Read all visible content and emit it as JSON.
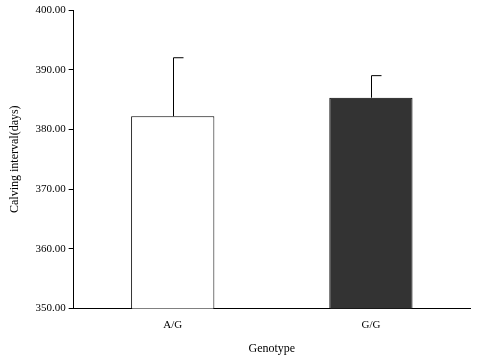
{
  "chart_data": {
    "type": "bar",
    "categories": [
      "A/G",
      "G/G"
    ],
    "values": [
      382.2,
      385.3
    ],
    "errors": [
      9.8,
      3.7
    ],
    "colors": [
      "#ffffff",
      "#333333"
    ],
    "x_label": "Genotype",
    "y_label": "Calving interval(days)",
    "ylim": [
      350,
      400
    ],
    "yticks": [
      {
        "value": 350,
        "label": "350.00"
      },
      {
        "value": 360,
        "label": "360.00"
      },
      {
        "value": 370,
        "label": "370.00"
      },
      {
        "value": 380,
        "label": "380.00"
      },
      {
        "value": 390,
        "label": "390.00"
      },
      {
        "value": 400,
        "label": "400.00"
      }
    ],
    "grid": false
  }
}
